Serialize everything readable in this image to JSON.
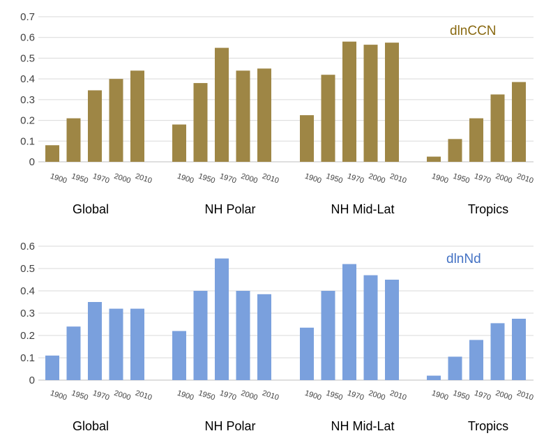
{
  "chart_data": [
    {
      "type": "bar",
      "series_label": "dlnCCN",
      "color": "#9e8645",
      "label_color": "#8a6a12",
      "ylim": [
        0,
        0.7
      ],
      "yticks": [
        "0",
        "0.1",
        "0.2",
        "0.3",
        "0.4",
        "0.5",
        "0.6",
        "0.7"
      ],
      "grid": true,
      "years": [
        "1900",
        "1950",
        "1970",
        "2000",
        "2010"
      ],
      "groups": [
        {
          "name": "Global",
          "values": [
            0.08,
            0.21,
            0.345,
            0.4,
            0.44
          ]
        },
        {
          "name": "NH Polar",
          "values": [
            0.18,
            0.38,
            0.55,
            0.44,
            0.45
          ]
        },
        {
          "name": "NH Mid-Lat",
          "values": [
            0.225,
            0.42,
            0.58,
            0.565,
            0.575
          ]
        },
        {
          "name": "Tropics",
          "values": [
            0.025,
            0.11,
            0.21,
            0.325,
            0.385
          ]
        }
      ]
    },
    {
      "type": "bar",
      "series_label": "dlnNd",
      "color": "#7aa0dd",
      "label_color": "#4472c4",
      "ylim": [
        0,
        0.6
      ],
      "yticks": [
        "0",
        "0.1",
        "0.2",
        "0.3",
        "0.4",
        "0.5",
        "0.6"
      ],
      "grid": true,
      "years": [
        "1900",
        "1950",
        "1970",
        "2000",
        "2010"
      ],
      "groups": [
        {
          "name": "Global",
          "values": [
            0.11,
            0.24,
            0.35,
            0.32,
            0.32
          ]
        },
        {
          "name": "NH Polar",
          "values": [
            0.22,
            0.4,
            0.545,
            0.4,
            0.385
          ]
        },
        {
          "name": "NH Mid-Lat",
          "values": [
            0.235,
            0.4,
            0.52,
            0.47,
            0.45
          ]
        },
        {
          "name": "Tropics",
          "values": [
            0.02,
            0.105,
            0.18,
            0.255,
            0.275
          ]
        }
      ]
    }
  ]
}
